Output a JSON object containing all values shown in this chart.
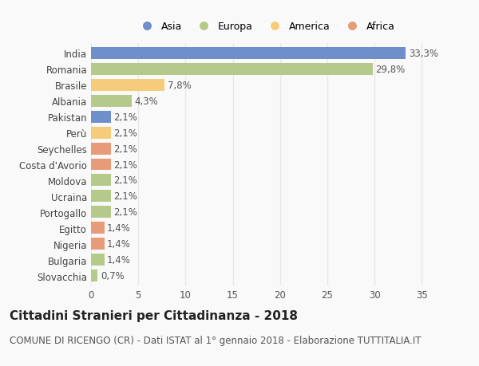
{
  "countries": [
    "India",
    "Romania",
    "Brasile",
    "Albania",
    "Pakistan",
    "Perù",
    "Seychelles",
    "Costa d'Avorio",
    "Moldova",
    "Ucraina",
    "Portogallo",
    "Egitto",
    "Nigeria",
    "Bulgaria",
    "Slovacchia"
  ],
  "values": [
    33.3,
    29.8,
    7.8,
    4.3,
    2.1,
    2.1,
    2.1,
    2.1,
    2.1,
    2.1,
    2.1,
    1.4,
    1.4,
    1.4,
    0.7
  ],
  "labels": [
    "33,3%",
    "29,8%",
    "7,8%",
    "4,3%",
    "2,1%",
    "2,1%",
    "2,1%",
    "2,1%",
    "2,1%",
    "2,1%",
    "2,1%",
    "1,4%",
    "1,4%",
    "1,4%",
    "0,7%"
  ],
  "colors": [
    "#6e8fc9",
    "#b5c98a",
    "#f5cc7a",
    "#b5c98a",
    "#6e8fc9",
    "#f5cc7a",
    "#e89b78",
    "#e89b78",
    "#b5c98a",
    "#b5c98a",
    "#b5c98a",
    "#e89b78",
    "#e89b78",
    "#b5c98a",
    "#b5c98a"
  ],
  "legend_labels": [
    "Asia",
    "Europa",
    "America",
    "Africa"
  ],
  "legend_colors": [
    "#6e8fc9",
    "#b5c98a",
    "#f5cc7a",
    "#e89b78"
  ],
  "title": "Cittadini Stranieri per Cittadinanza - 2018",
  "subtitle": "COMUNE DI RICENGO (CR) - Dati ISTAT al 1° gennaio 2018 - Elaborazione TUTTITALIA.IT",
  "xlim": [
    0,
    37
  ],
  "background_color": "#f9f9f9",
  "grid_color": "#e8e8e8",
  "bar_height": 0.75,
  "title_fontsize": 11,
  "subtitle_fontsize": 8.5,
  "tick_fontsize": 8.5,
  "label_fontsize": 8.5
}
